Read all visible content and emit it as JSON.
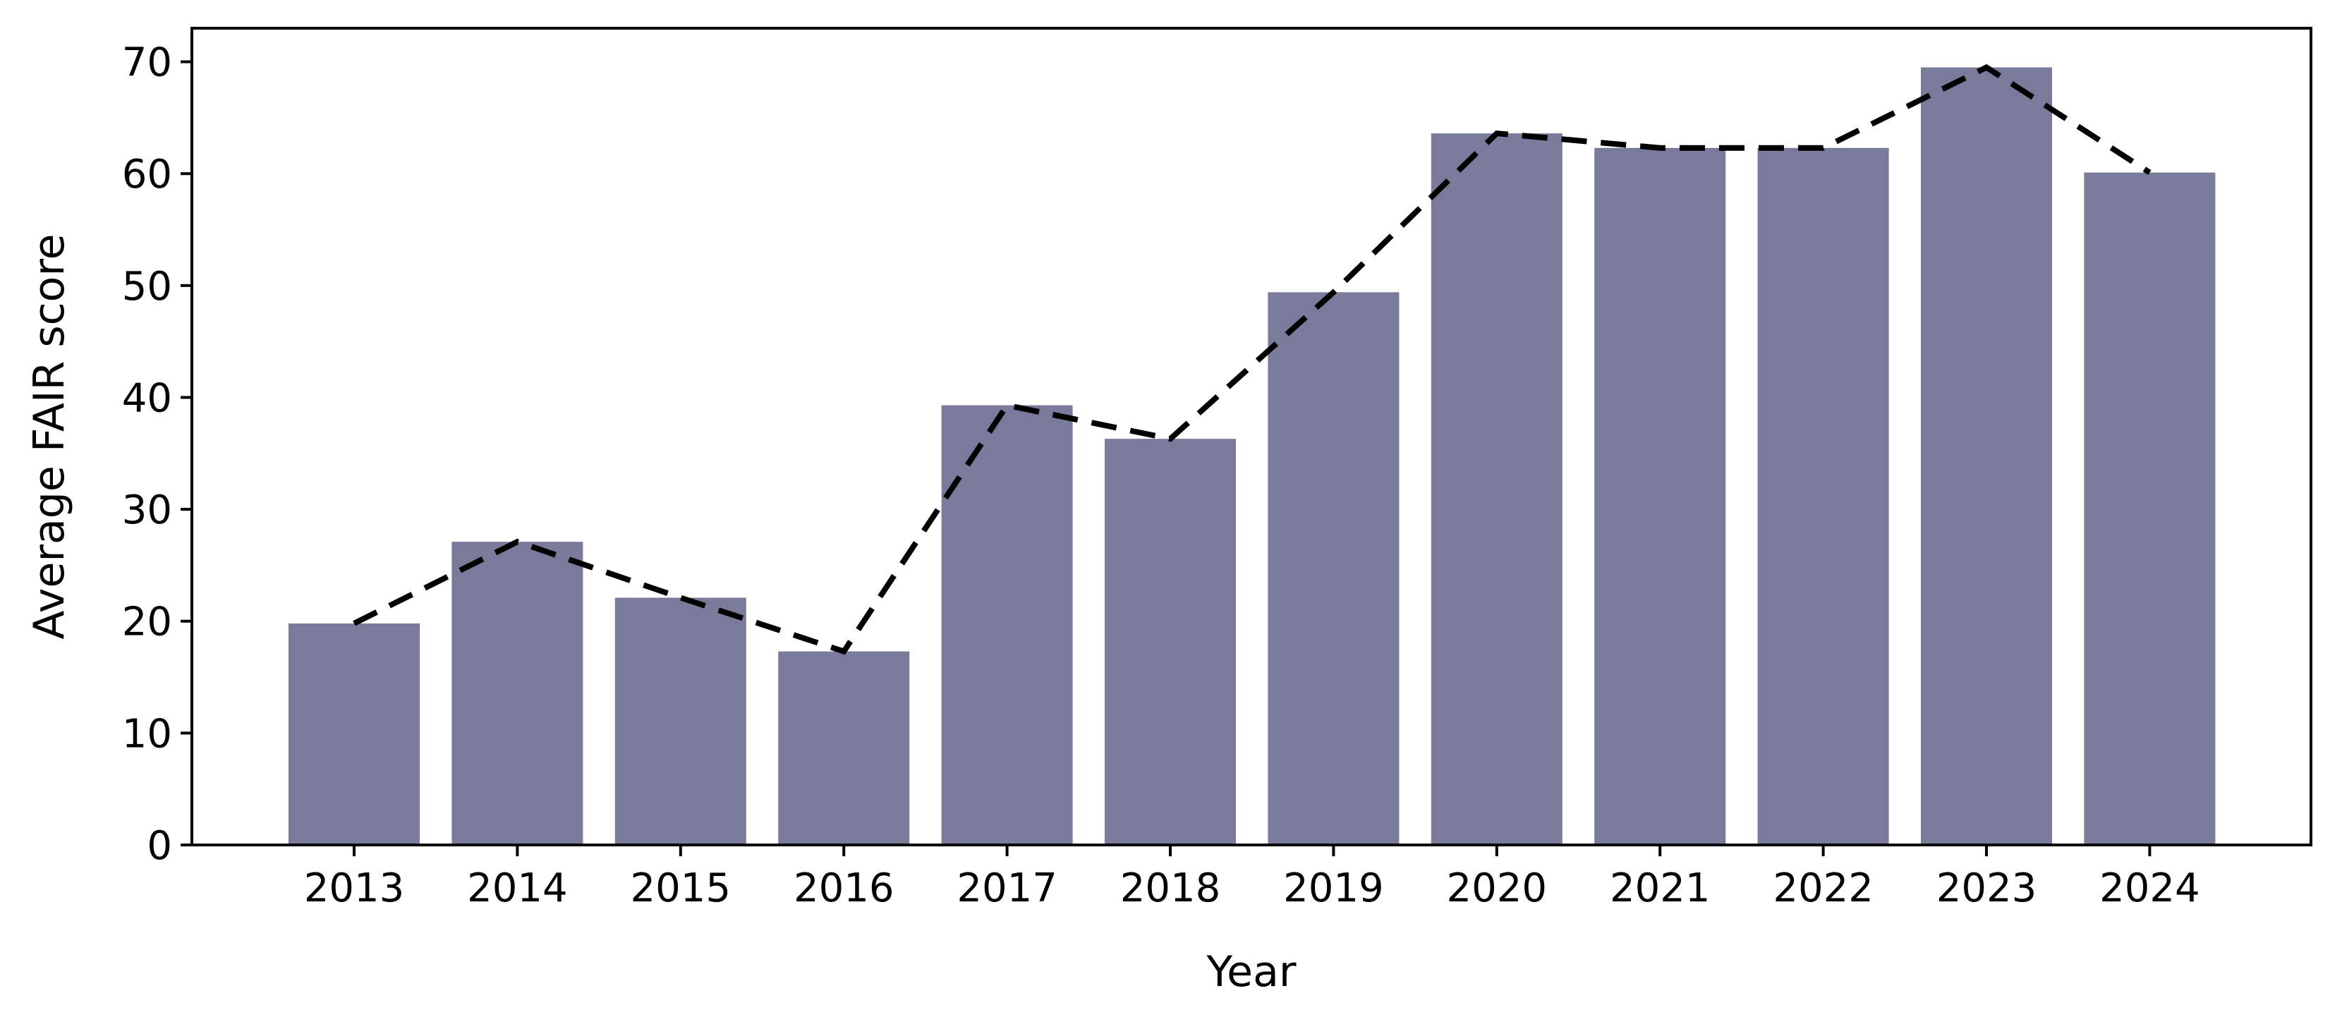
{
  "chart_data": {
    "type": "bar",
    "title": "",
    "xlabel": "Year",
    "ylabel": "Average FAIR score",
    "categories": [
      "2013",
      "2014",
      "2015",
      "2016",
      "2017",
      "2018",
      "2019",
      "2020",
      "2021",
      "2022",
      "2023",
      "2024"
    ],
    "values": [
      19.8,
      27.1,
      22.1,
      17.3,
      39.3,
      36.3,
      49.4,
      63.6,
      62.3,
      62.3,
      69.5,
      60.1
    ],
    "trend_line": {
      "style": "dashed",
      "values": [
        19.8,
        27.1,
        22.1,
        17.3,
        39.3,
        36.3,
        49.4,
        63.6,
        62.3,
        62.3,
        69.5,
        60.1
      ]
    },
    "ylim": [
      0,
      73
    ],
    "yticks": [
      "0",
      "10",
      "20",
      "30",
      "40",
      "50",
      "60",
      "70"
    ],
    "grid": false,
    "bar_color": "#7a7b9a",
    "line_color": "#000000"
  }
}
